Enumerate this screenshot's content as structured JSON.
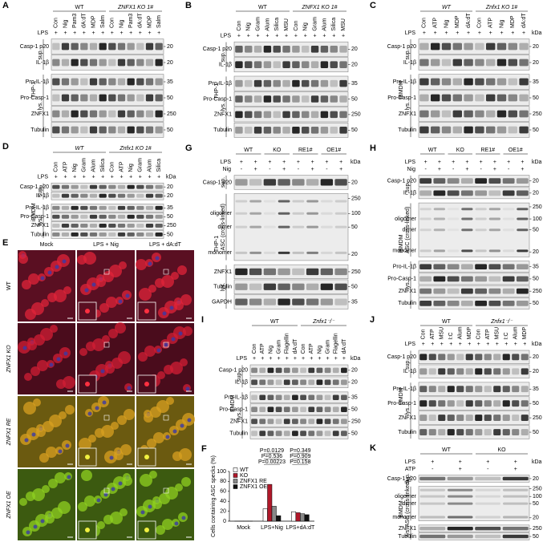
{
  "panels": [
    {
      "letter": "A",
      "groups": [
        {
          "label": "WT",
          "lanes": [
            "Con",
            "Nig",
            "Pam3",
            "dA:dT",
            "MDP",
            "Salm"
          ]
        },
        {
          "label": "ZNFX1 KO 1#",
          "italic": true,
          "lanes": [
            "Con",
            "Nig",
            "Pam3",
            "dA:dT",
            "MDP",
            "Salm"
          ]
        }
      ],
      "treatments": [
        {
          "label": "LPS",
          "marks": [
            "+",
            "+",
            "+",
            "+",
            "+",
            "+",
            "+",
            "+",
            "+",
            "+",
            "+",
            "+"
          ]
        }
      ],
      "cell": "THP-1",
      "sections": [
        {
          "label": "sup.",
          "rows": [
            {
              "label": "Casp-1 p20",
              "kda": [
                20
              ]
            },
            {
              "label": "IL-1β",
              "kda": [
                20
              ]
            }
          ]
        },
        {
          "label": "lys.",
          "rows": [
            {
              "label": "Pro-IL-1β",
              "kda": [
                35
              ]
            },
            {
              "label": "Pro-Casp-1",
              "kda": [
                50
              ]
            },
            {
              "label": "ZNFX1",
              "kda": [
                250
              ]
            },
            {
              "label": "Tubulin",
              "kda": [
                50
              ]
            }
          ]
        }
      ]
    },
    {
      "letter": "B",
      "groups": [
        {
          "label": "WT",
          "lanes": [
            "Con",
            "Nig",
            "Gram",
            "Alum",
            "Silica",
            "MSU"
          ]
        },
        {
          "label": "ZNFX1 KO 1#",
          "italic": true,
          "lanes": [
            "Con",
            "Nig",
            "Gram",
            "Alum",
            "Silica",
            "MSU"
          ]
        }
      ],
      "treatments": [
        {
          "label": "LPS",
          "marks": [
            "+",
            "+",
            "+",
            "+",
            "+",
            "+",
            "+",
            "+",
            "+",
            "+",
            "+",
            "+"
          ]
        }
      ],
      "cell": "THP-1",
      "sections": [
        {
          "label": "sup.",
          "rows": [
            {
              "label": "Casp-1 p20",
              "kda": [
                20
              ]
            },
            {
              "label": "IL-1β",
              "kda": [
                20
              ]
            }
          ]
        },
        {
          "label": "lys.",
          "rows": [
            {
              "label": "Pro-IL-1β",
              "kda": [
                35
              ]
            },
            {
              "label": "Pro-Casp-1",
              "kda": [
                50
              ]
            },
            {
              "label": "ZNFX1",
              "kda": [
                250
              ]
            },
            {
              "label": "Tubulin",
              "kda": [
                50
              ]
            }
          ]
        }
      ]
    },
    {
      "letter": "C",
      "groups": [
        {
          "label": "WT",
          "italic": true,
          "lanes": [
            "Con",
            "ATP",
            "Nig",
            "MDP",
            "dA:dT"
          ]
        },
        {
          "label": "Znfx1 KO 1#",
          "italic": true,
          "lanes": [
            "Con",
            "ATP",
            "Nig",
            "MDP",
            "dA:dT"
          ]
        }
      ],
      "treatments": [
        {
          "label": "LPS",
          "marks": [
            "+",
            "+",
            "+",
            "+",
            "+",
            "+",
            "+",
            "+",
            "+",
            "+"
          ]
        }
      ],
      "kda_label": "kDa",
      "cell": "iBMDM",
      "sections": [
        {
          "label": "sup.",
          "rows": [
            {
              "label": "Casp-1 p20",
              "kda": [
                20
              ]
            },
            {
              "label": "IL-1β",
              "kda": [
                20
              ]
            }
          ]
        },
        {
          "label": "lys.",
          "rows": [
            {
              "label": "Pro-IL-1β",
              "kda": [
                35
              ]
            },
            {
              "label": "Pro-Casp-1",
              "kda": [
                50
              ]
            },
            {
              "label": "ZNFX1",
              "kda": [
                250
              ]
            },
            {
              "label": "Tubulin",
              "kda": [
                50
              ]
            }
          ]
        }
      ]
    },
    {
      "letter": "D",
      "groups": [
        {
          "label": "WT",
          "italic": true,
          "lanes": [
            "Con",
            "ATP",
            "Nig",
            "Gram",
            "Alum",
            "Silica"
          ]
        },
        {
          "label": "Znfx1 KO 1#",
          "italic": true,
          "lanes": [
            "Con",
            "ATP",
            "Nig",
            "Gram",
            "Alum",
            "Silica"
          ]
        }
      ],
      "treatments": [
        {
          "label": "LPS",
          "marks": [
            "+",
            "+",
            "+",
            "+",
            "+",
            "+",
            "+",
            "+",
            "+",
            "+",
            "+",
            "+"
          ]
        }
      ],
      "kda_label": "kDa",
      "cell": "iBMDM",
      "sections": [
        {
          "label": "sup.",
          "rows": [
            {
              "label": "Casp-1 p20",
              "kda": [
                20
              ]
            },
            {
              "label": "IL-1β",
              "kda": [
                20
              ]
            }
          ]
        },
        {
          "label": "lys.",
          "rows": [
            {
              "label": "Pro-IL-1β",
              "kda": [
                35
              ]
            },
            {
              "label": "Pro-Casp-1",
              "kda": [
                50
              ]
            },
            {
              "label": "ZNFX1",
              "kda": [
                250
              ]
            },
            {
              "label": "Tubulin",
              "kda": [
                50
              ]
            }
          ]
        }
      ]
    },
    {
      "letter": "G",
      "groups": [
        {
          "label": "WT"
        },
        {
          "label": "KO"
        },
        {
          "label": "RE1#"
        },
        {
          "label": "OE1#"
        }
      ],
      "treatments": [
        {
          "label": "LPS",
          "marks": [
            "+",
            "+",
            "+",
            "+",
            "+",
            "+",
            "+",
            "+"
          ]
        },
        {
          "label": "Nig",
          "marks": [
            "-",
            "+",
            "-",
            "+",
            "-",
            "+",
            "-",
            "+"
          ]
        }
      ],
      "kda_label": "kDa",
      "cell": "THP-1",
      "sections": [
        {
          "label": "sup.",
          "rows": [
            {
              "label": "Casp-1 p20",
              "kda": [
                20
              ]
            }
          ]
        },
        {
          "label": "ASC (cross-linked)",
          "rows": [
            {
              "markers": [
                "oligomer",
                "dimer",
                "monomer"
              ],
              "kda": [
                250,
                100,
                50,
                20
              ]
            }
          ]
        },
        {
          "label": "lys.",
          "rows": [
            {
              "label": "ZNFX1",
              "kda": [
                250
              ]
            },
            {
              "label": "Tubulin",
              "kda": [
                50
              ]
            },
            {
              "label": "GAPDH",
              "kda": [
                35
              ]
            }
          ]
        }
      ]
    },
    {
      "letter": "H",
      "groups": [
        {
          "label": "WT"
        },
        {
          "label": "KO"
        },
        {
          "label": "RE1#"
        },
        {
          "label": "OE1#"
        }
      ],
      "treatments": [
        {
          "label": "LPS",
          "marks": [
            "+",
            "+",
            "+",
            "+",
            "+",
            "+",
            "+",
            "+"
          ]
        },
        {
          "label": "Nig",
          "marks": [
            "-",
            "+",
            "-",
            "+",
            "-",
            "+",
            "-",
            "+"
          ]
        }
      ],
      "kda_label": "kDa",
      "cell": "iBMDM",
      "sections": [
        {
          "label": "sup.",
          "rows": [
            {
              "label": "Casp-1 p20",
              "kda": [
                20
              ]
            },
            {
              "label": "IL-1β",
              "kda": [
                20
              ]
            }
          ]
        },
        {
          "label": "ASC (cross-linked)",
          "rows": [
            {
              "markers": [
                "oligomer",
                "dimer",
                "monomer"
              ],
              "kda": [
                250,
                100,
                50,
                20
              ]
            }
          ]
        },
        {
          "label": "lys.",
          "rows": [
            {
              "label": "Pro-IL-1β",
              "kda": [
                35
              ]
            },
            {
              "label": "Pro-Casp-1",
              "kda": [
                50
              ]
            },
            {
              "label": "ZNFX1",
              "kda": [
                250
              ]
            },
            {
              "label": "Tubulin",
              "kda": [
                50
              ]
            }
          ]
        }
      ]
    },
    {
      "letter": "I",
      "groups": [
        {
          "label": "WT",
          "lanes": [
            "Con",
            "ATP",
            "Nig",
            "Gram",
            "Flagellin",
            "dA:dT"
          ]
        },
        {
          "label": "Znfx1⁻/⁻",
          "italic": true,
          "lanes": [
            "Con",
            "ATP",
            "Nig",
            "Gram",
            "Flagellin",
            "dA:dT"
          ]
        }
      ],
      "treatments": [
        {
          "label": "LPS",
          "marks": [
            "+",
            "+",
            "+",
            "+",
            "+",
            "+",
            "+",
            "+",
            "+",
            "+",
            "+",
            "+"
          ]
        }
      ],
      "kda_label": "kDa",
      "cell": "BMDM",
      "sections": [
        {
          "label": "sup.",
          "rows": [
            {
              "label": "Casp-1 p20",
              "kda": [
                20
              ]
            },
            {
              "label": "IL-1β",
              "kda": [
                20
              ]
            }
          ]
        },
        {
          "label": "lys.",
          "rows": [
            {
              "label": "Pro-IL-1β",
              "kda": [
                35
              ]
            },
            {
              "label": "Pro-Casp-1",
              "kda": [
                50
              ]
            },
            {
              "label": "ZNFX1",
              "kda": [
                250
              ]
            },
            {
              "label": "Tubulin",
              "kda": [
                50
              ]
            }
          ]
        }
      ]
    },
    {
      "letter": "J",
      "groups": [
        {
          "label": "WT",
          "lanes": [
            "Con",
            "ATP",
            "MSU",
            "I:C",
            "Alum",
            "MDP"
          ]
        },
        {
          "label": "Znfx1⁻/⁻",
          "italic": true,
          "lanes": [
            "Con",
            "ATP",
            "MSU",
            "I:C",
            "Alum",
            "MDP"
          ]
        }
      ],
      "treatments": [
        {
          "label": "LPS",
          "marks": [
            "+",
            "+",
            "+",
            "+",
            "+",
            "+",
            "+",
            "+",
            "+",
            "+",
            "+",
            "+"
          ]
        }
      ],
      "kda_label": "kDa",
      "cell": "BMDM",
      "sections": [
        {
          "label": "sup.",
          "rows": [
            {
              "label": "Casp-1 p20",
              "kda": [
                20
              ]
            },
            {
              "label": "IL-1β",
              "kda": [
                20
              ]
            }
          ]
        },
        {
          "label": "lys.",
          "rows": [
            {
              "label": "Pro-IL-1β",
              "kda": [
                35
              ]
            },
            {
              "label": "Pro-Casp-1",
              "kda": [
                50
              ]
            },
            {
              "label": "ZNFX1",
              "kda": [
                250
              ]
            },
            {
              "label": "Tubulin",
              "kda": [
                50
              ]
            }
          ]
        }
      ]
    },
    {
      "letter": "K",
      "groups": [
        {
          "label": "WT"
        },
        {
          "label": "KO"
        }
      ],
      "treatments": [
        {
          "label": "LPS",
          "marks": [
            "+",
            "+",
            "+",
            "+"
          ]
        },
        {
          "label": "ATP",
          "marks": [
            "-",
            "+",
            "-",
            "+"
          ]
        }
      ],
      "kda_label": "kDa",
      "cell": "BMDM",
      "sections": [
        {
          "label": "sup.",
          "rows": [
            {
              "label": "Casp-1 p20",
              "kda": [
                20
              ]
            }
          ]
        },
        {
          "label": "ASC (cross-linked)",
          "rows": [
            {
              "markers": [
                "oligomer",
                "dimer",
                "monomer"
              ],
              "kda": [
                250,
                100,
                50,
                20
              ]
            }
          ]
        },
        {
          "label": "lys.",
          "rows": [
            {
              "label": "ZNFX1",
              "kda": [
                250
              ]
            },
            {
              "label": "Tubulin",
              "kda": [
                50
              ]
            }
          ]
        }
      ]
    }
  ],
  "microscopy": {
    "letter": "E",
    "columns": [
      "Mock",
      "LPS + Nig",
      "LPS + dA:dT"
    ],
    "rows": [
      "WT",
      "ZNFX1 KO",
      "ZNFX1 RE",
      "ZNFX1 OE"
    ]
  },
  "chart_data": {
    "letter": "F",
    "type": "bar",
    "y_label": "Cells containing ASC specks (%)",
    "categories": [
      "Mock",
      "LPS+Nig",
      "LPS+dA:dT"
    ],
    "series": [
      {
        "name": "WT",
        "color": "#ffffff",
        "values": [
          0,
          25,
          19
        ]
      },
      {
        "name": "KO",
        "color": "#b0182a",
        "values": [
          0,
          74,
          17
        ]
      },
      {
        "name": "ZNFX1 RE",
        "color": "#888888",
        "values": [
          0,
          30,
          15
        ]
      },
      {
        "name": "ZNFX1 OE",
        "color": "#111111",
        "values": [
          0,
          11,
          13
        ]
      }
    ],
    "ylim": [
      0,
      100
    ],
    "yticks": [
      0,
      20,
      40,
      60,
      80,
      100
    ],
    "annotations": [
      "P=0.0129",
      "P=0.536",
      "P=0.00223",
      "P=0.349",
      "P=0.909",
      "P=0.158"
    ]
  }
}
